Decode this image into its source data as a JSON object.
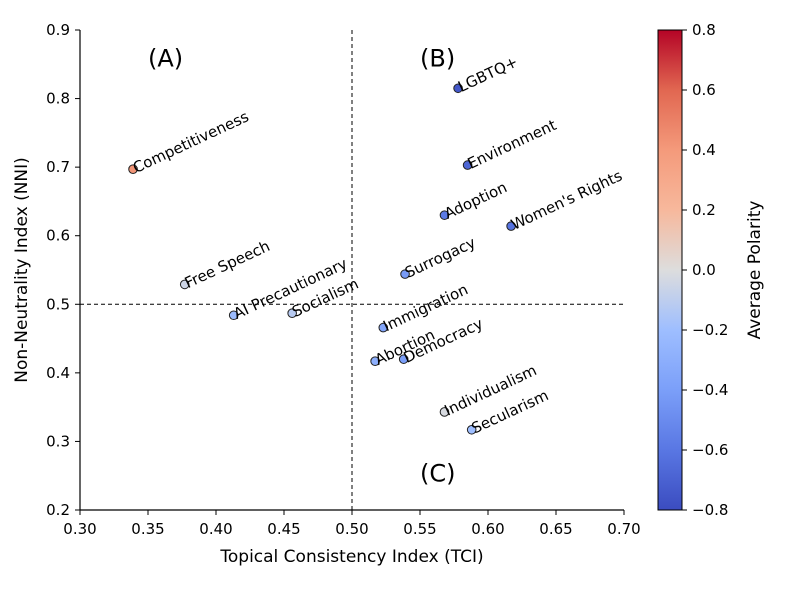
{
  "chart_data": {
    "type": "scatter",
    "xlabel": "Topical Consistency Index (TCI)",
    "ylabel": "Non-Neutrality Index (NNI)",
    "xlim": [
      0.3,
      0.7
    ],
    "ylim": [
      0.2,
      0.9
    ],
    "xticks": [
      "0.30",
      "0.35",
      "0.40",
      "0.45",
      "0.50",
      "0.55",
      "0.60",
      "0.65",
      "0.70"
    ],
    "yticks": [
      "0.2",
      "0.3",
      "0.4",
      "0.5",
      "0.6",
      "0.7",
      "0.8",
      "0.9"
    ],
    "reference_lines": {
      "x": 0.5,
      "y": 0.5,
      "style": "dashed"
    },
    "grid": false,
    "quadrant_labels": [
      {
        "text": "(A)",
        "x": 0.35,
        "y": 0.86
      },
      {
        "text": "(B)",
        "x": 0.55,
        "y": 0.86
      },
      {
        "text": "(C)",
        "x": 0.55,
        "y": 0.255
      }
    ],
    "points": [
      {
        "label": "LGBTQ+",
        "x": 0.578,
        "y": 0.815,
        "polarity": -0.75
      },
      {
        "label": "Competitiveness",
        "x": 0.339,
        "y": 0.697,
        "polarity": 0.42
      },
      {
        "label": "Environment",
        "x": 0.585,
        "y": 0.703,
        "polarity": -0.68
      },
      {
        "label": "Women's Rights",
        "x": 0.617,
        "y": 0.614,
        "polarity": -0.62
      },
      {
        "label": "Adoption",
        "x": 0.568,
        "y": 0.63,
        "polarity": -0.58
      },
      {
        "label": "Free Speech",
        "x": 0.377,
        "y": 0.529,
        "polarity": -0.05
      },
      {
        "label": "Surrogacy",
        "x": 0.539,
        "y": 0.544,
        "polarity": -0.42
      },
      {
        "label": "AI Precautionary",
        "x": 0.413,
        "y": 0.484,
        "polarity": -0.22
      },
      {
        "label": "Socialism",
        "x": 0.456,
        "y": 0.487,
        "polarity": -0.12
      },
      {
        "label": "Immigration",
        "x": 0.523,
        "y": 0.466,
        "polarity": -0.36
      },
      {
        "label": "Abortion",
        "x": 0.517,
        "y": 0.417,
        "polarity": -0.3
      },
      {
        "label": "Democracy",
        "x": 0.538,
        "y": 0.42,
        "polarity": -0.4
      },
      {
        "label": "Individualism",
        "x": 0.568,
        "y": 0.343,
        "polarity": -0.02
      },
      {
        "label": "Secularism",
        "x": 0.588,
        "y": 0.317,
        "polarity": -0.2
      }
    ],
    "colorbar": {
      "label": "Average Polarity",
      "range": [
        -0.8,
        0.8
      ],
      "ticks": [
        "0.8",
        "0.6",
        "0.4",
        "0.2",
        "0.0",
        "−0.2",
        "−0.4",
        "−0.6",
        "−0.8"
      ],
      "colormap": "coolwarm",
      "low_color": "#3b4cc0",
      "mid_color": "#dddddd",
      "high_color": "#b40426"
    }
  }
}
